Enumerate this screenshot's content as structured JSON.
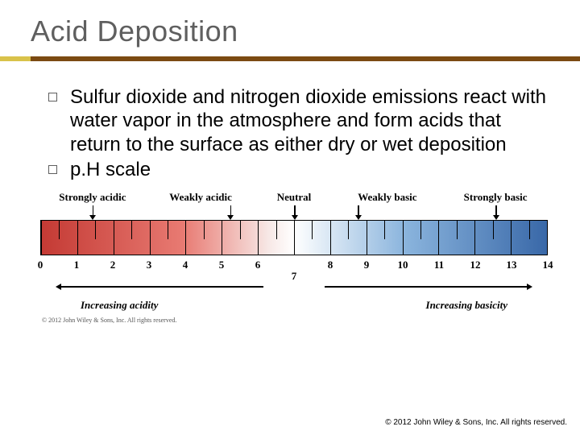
{
  "title": "Acid Deposition",
  "accent_color": "#d9c24a",
  "rule_color": "#7b4a12",
  "bullets": [
    "Sulfur dioxide and nitrogen dioxide emissions react with water vapor in the atmosphere and form acids that return to the surface as either dry or wet deposition",
    "p.H scale"
  ],
  "ph_scale": {
    "labels_top": [
      "Strongly acidic",
      "Weakly acidic",
      "Neutral",
      "Weakly basic",
      "Strongly basic"
    ],
    "neutral_label": "Neutral",
    "numbers": [
      0,
      1,
      2,
      3,
      4,
      5,
      6,
      7,
      8,
      9,
      10,
      11,
      12,
      13,
      14
    ],
    "gradient_stops": [
      {
        "pct": 0,
        "color": "#c43a34"
      },
      {
        "pct": 28,
        "color": "#e87a72"
      },
      {
        "pct": 45,
        "color": "#f7e8e6"
      },
      {
        "pct": 50,
        "color": "#ffffff"
      },
      {
        "pct": 55,
        "color": "#e4eef7"
      },
      {
        "pct": 72,
        "color": "#8ab4dd"
      },
      {
        "pct": 100,
        "color": "#3968a8"
      }
    ],
    "bottom_left": "Increasing acidity",
    "bottom_right": "Increasing basicity",
    "fig_copyright": "© 2012 John Wiley & Sons, Inc. All rights reserved."
  },
  "footer": "© 2012 John Wiley & Sons, Inc. All rights reserved."
}
